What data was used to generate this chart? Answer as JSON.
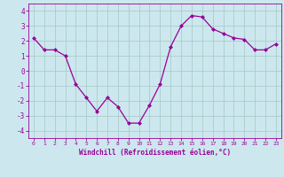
{
  "x": [
    0,
    1,
    2,
    3,
    4,
    5,
    6,
    7,
    8,
    9,
    10,
    11,
    12,
    13,
    14,
    15,
    16,
    17,
    18,
    19,
    20,
    21,
    22,
    23
  ],
  "y": [
    2.2,
    1.4,
    1.4,
    1.0,
    -0.9,
    -1.8,
    -2.7,
    -1.8,
    -2.4,
    -3.5,
    -3.5,
    -2.3,
    -0.9,
    1.6,
    3.0,
    3.7,
    3.6,
    2.8,
    2.5,
    2.2,
    2.1,
    1.4,
    1.4,
    1.8
  ],
  "line_color": "#990099",
  "marker": "D",
  "marker_size": 2.0,
  "bg_color": "#cce8ee",
  "grid_color": "#aacccc",
  "xlabel": "Windchill (Refroidissement éolien,°C)",
  "xlabel_color": "#990099",
  "tick_color": "#990099",
  "ylim": [
    -4.5,
    4.5
  ],
  "xlim": [
    -0.5,
    23.5
  ],
  "yticks": [
    -4,
    -3,
    -2,
    -1,
    0,
    1,
    2,
    3,
    4
  ],
  "xticks": [
    0,
    1,
    2,
    3,
    4,
    5,
    6,
    7,
    8,
    9,
    10,
    11,
    12,
    13,
    14,
    15,
    16,
    17,
    18,
    19,
    20,
    21,
    22,
    23
  ]
}
